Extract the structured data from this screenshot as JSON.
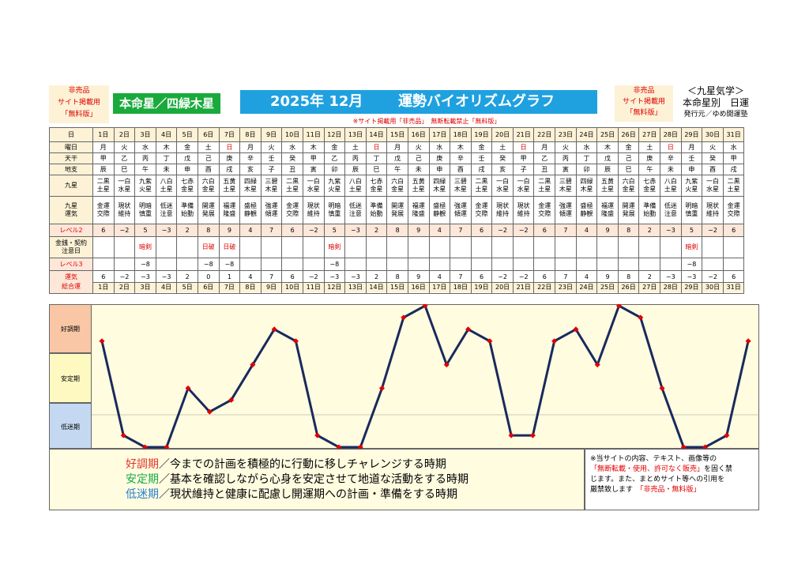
{
  "header": {
    "left_badge": [
      "非売品",
      "サイト掲載用",
      "「無料版」"
    ],
    "honmei": "本命星／四緑木星",
    "title_year_month": "2025年 12月",
    "title_main": "運勢バイオリズムグラフ",
    "right_badge": [
      "非売品",
      "サイト掲載用",
      "「無料版」"
    ],
    "kyusei_title": "＜九星気学＞",
    "kyusei_sub": "本命星別　日運",
    "publisher": "発行元／ゆめ開運塾",
    "notice": "※サイト掲載用「非売品」　無断転載禁止「無料版」"
  },
  "row_labels": {
    "day": "日",
    "weekday": "曜日",
    "tenkan": "天干",
    "chishi": "地支",
    "kyusei": "九星",
    "unsei": [
      "九星",
      "運気"
    ],
    "level2": "レベル2",
    "kinsen": [
      "金銭・契約",
      "注意日"
    ],
    "level3": "レベル3",
    "total": [
      "運気",
      "総合運"
    ]
  },
  "days": [
    "1日",
    "2日",
    "3日",
    "4日",
    "5日",
    "6日",
    "7日",
    "8日",
    "9日",
    "10日",
    "11日",
    "12日",
    "13日",
    "14日",
    "15日",
    "16日",
    "17日",
    "18日",
    "19日",
    "20日",
    "21日",
    "22日",
    "23日",
    "24日",
    "25日",
    "26日",
    "27日",
    "28日",
    "29日",
    "30日",
    "31日"
  ],
  "weekday": [
    "月",
    "火",
    "水",
    "木",
    "金",
    "土",
    "日",
    "月",
    "火",
    "水",
    "木",
    "金",
    "土",
    "日",
    "月",
    "火",
    "水",
    "木",
    "金",
    "土",
    "日",
    "月",
    "火",
    "水",
    "木",
    "金",
    "土",
    "日",
    "月",
    "火",
    "水"
  ],
  "sunday_index": [
    6,
    13,
    20,
    27
  ],
  "tenkan": [
    "甲",
    "乙",
    "丙",
    "丁",
    "戊",
    "己",
    "庚",
    "辛",
    "壬",
    "癸",
    "甲",
    "乙",
    "丙",
    "丁",
    "戊",
    "己",
    "庚",
    "辛",
    "壬",
    "癸",
    "甲",
    "乙",
    "丙",
    "丁",
    "戊",
    "己",
    "庚",
    "辛",
    "壬",
    "癸",
    "甲"
  ],
  "chishi": [
    "辰",
    "巳",
    "午",
    "未",
    "申",
    "酉",
    "戌",
    "亥",
    "子",
    "丑",
    "寅",
    "卯",
    "辰",
    "巳",
    "午",
    "未",
    "申",
    "酉",
    "戌",
    "亥",
    "子",
    "丑",
    "寅",
    "卯",
    "辰",
    "巳",
    "午",
    "未",
    "申",
    "酉",
    "戌"
  ],
  "kyusei": [
    [
      "二黒",
      "土星"
    ],
    [
      "一白",
      "水星"
    ],
    [
      "九紫",
      "火星"
    ],
    [
      "八白",
      "土星"
    ],
    [
      "七赤",
      "金星"
    ],
    [
      "六白",
      "金星"
    ],
    [
      "五黄",
      "土星"
    ],
    [
      "四緑",
      "木星"
    ],
    [
      "三碧",
      "木星"
    ],
    [
      "二黒",
      "土星"
    ],
    [
      "一白",
      "水星"
    ],
    [
      "九紫",
      "火星"
    ],
    [
      "八白",
      "土星"
    ],
    [
      "七赤",
      "金星"
    ],
    [
      "六白",
      "金星"
    ],
    [
      "五黄",
      "土星"
    ],
    [
      "四緑",
      "木星"
    ],
    [
      "三碧",
      "木星"
    ],
    [
      "二黒",
      "土星"
    ],
    [
      "一白",
      "水星"
    ],
    [
      "一白",
      "水星"
    ],
    [
      "二黒",
      "土星"
    ],
    [
      "三碧",
      "木星"
    ],
    [
      "四緑",
      "木星"
    ],
    [
      "五黄",
      "土星"
    ],
    [
      "六白",
      "金星"
    ],
    [
      "七赤",
      "金星"
    ],
    [
      "八白",
      "土星"
    ],
    [
      "九紫",
      "火星"
    ],
    [
      "一白",
      "水星"
    ],
    [
      "二黒",
      "土星"
    ]
  ],
  "unsei": [
    [
      "金運",
      "交際"
    ],
    [
      "現状",
      "維持"
    ],
    [
      "明暗",
      "慎重"
    ],
    [
      "低迷",
      "注意"
    ],
    [
      "準備",
      "始動"
    ],
    [
      "開運",
      "発展"
    ],
    [
      "福運",
      "隆盛"
    ],
    [
      "盛極",
      "静観"
    ],
    [
      "強運",
      "傾運"
    ],
    [
      "金運",
      "交際"
    ],
    [
      "現状",
      "維持"
    ],
    [
      "明暗",
      "慎重"
    ],
    [
      "低迷",
      "注意"
    ],
    [
      "準備",
      "始動"
    ],
    [
      "開運",
      "発展"
    ],
    [
      "福運",
      "隆盛"
    ],
    [
      "盛極",
      "静観"
    ],
    [
      "強運",
      "傾運"
    ],
    [
      "金運",
      "交際"
    ],
    [
      "現状",
      "維持"
    ],
    [
      "現状",
      "維持"
    ],
    [
      "金運",
      "交際"
    ],
    [
      "強運",
      "傾運"
    ],
    [
      "盛極",
      "静観"
    ],
    [
      "福運",
      "隆盛"
    ],
    [
      "開運",
      "発展"
    ],
    [
      "準備",
      "始動"
    ],
    [
      "低迷",
      "注意"
    ],
    [
      "明暗",
      "慎重"
    ],
    [
      "現状",
      "維持"
    ],
    [
      "金運",
      "交際"
    ]
  ],
  "level2": [
    "6",
    "−2",
    "5",
    "−3",
    "2",
    "8",
    "9",
    "4",
    "7",
    "6",
    "−2",
    "5",
    "−3",
    "2",
    "8",
    "9",
    "4",
    "7",
    "6",
    "−2",
    "−2",
    "6",
    "7",
    "4",
    "9",
    "8",
    "2",
    "−3",
    "5",
    "−2",
    "6"
  ],
  "kinsen": [
    "",
    "",
    "暗剣",
    "",
    "",
    "日破",
    "日破",
    "",
    "",
    "",
    "",
    "暗剣",
    "",
    "",
    "",
    "",
    "",
    "",
    "",
    "",
    "",
    "",
    "",
    "",
    "",
    "",
    "",
    "",
    "暗剣",
    "",
    ""
  ],
  "level3": [
    "",
    "",
    "−8",
    "",
    "",
    "−8",
    "−8",
    "",
    "",
    "",
    "",
    "−8",
    "",
    "",
    "",
    "",
    "",
    "",
    "",
    "",
    "",
    "",
    "",
    "",
    "",
    "",
    "",
    "",
    "−8",
    "",
    ""
  ],
  "total": [
    "6",
    "−2",
    "−3",
    "−3",
    "2",
    "0",
    "1",
    "4",
    "7",
    "6",
    "−2",
    "−3",
    "−3",
    "2",
    "8",
    "9",
    "4",
    "7",
    "6",
    "−2",
    "−2",
    "6",
    "7",
    "4",
    "9",
    "8",
    "2",
    "−3",
    "−3",
    "−2",
    "6"
  ],
  "bands": {
    "good": "好調期",
    "stable": "安定期",
    "low": "低迷期"
  },
  "legend": [
    {
      "key": "好調期",
      "text": "／今までの計画を積極的に行動に移しチャレンジする時期",
      "color": "#e0352b"
    },
    {
      "key": "安定期",
      "text": "／基本を確認しながら心身を安定させて地道な活動をする時期",
      "color": "#18a84a"
    },
    {
      "key": "低迷期",
      "text": "／現状維持と健康に配慮し開運期への計画・準備をする時期",
      "color": "#2a7fd0"
    }
  ],
  "copyright": {
    "line1": "※当サイトの内容、テキスト、画像等の",
    "line2_red": "「無断転載・使用、許可なく販売」",
    "line2_tail": "を固く禁",
    "line3": "じます。また、まとめサイト等への引用を",
    "line4": "厳禁致します",
    "line4_red": "「非売品・無料版」"
  },
  "chart_data": {
    "type": "line",
    "title": "運勢バイオリズムグラフ",
    "x": [
      1,
      2,
      3,
      4,
      5,
      6,
      7,
      8,
      9,
      10,
      11,
      12,
      13,
      14,
      15,
      16,
      17,
      18,
      19,
      20,
      21,
      22,
      23,
      24,
      25,
      26,
      27,
      28,
      29,
      30,
      31
    ],
    "series": [
      {
        "values": [
          6,
          -2,
          -3,
          -3,
          2,
          0,
          1,
          4,
          7,
          6,
          -2,
          -3,
          -3,
          2,
          8,
          9,
          4,
          7,
          6,
          -2,
          -2,
          6,
          7,
          4,
          9,
          8,
          2,
          -3,
          -3,
          -2,
          6
        ]
      }
    ],
    "ylim": [
      -3,
      9
    ],
    "line_color": "#1a2a5c",
    "marker_color": "#e00000"
  }
}
